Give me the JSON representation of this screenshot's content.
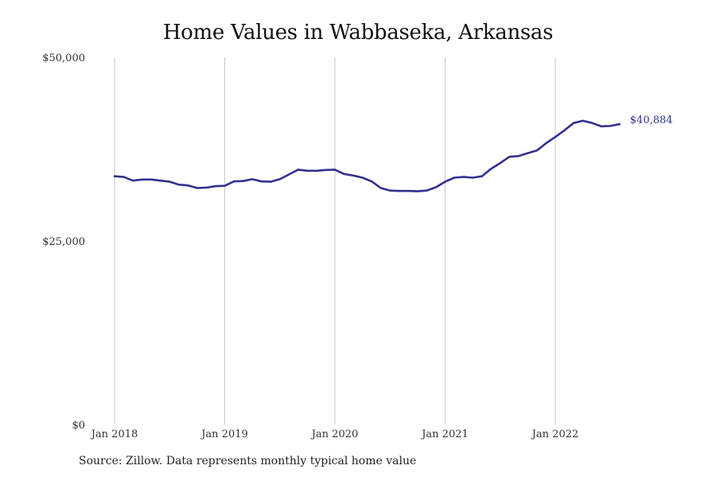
{
  "chart_data": {
    "type": "line",
    "title": "Home Values in Wabbaseka, Arkansas",
    "xlabel": "",
    "ylabel": "",
    "x_ticks": [
      "Jan 2018",
      "Jan 2019",
      "Jan 2020",
      "Jan 2021",
      "Jan 2022"
    ],
    "y_ticks": [
      "$0",
      "$25,000",
      "$50,000"
    ],
    "ylim": [
      0,
      50000
    ],
    "grid": "vertical-at-year-ticks",
    "line_color": "#33308f",
    "end_label": "$40,884",
    "series": [
      {
        "x": [
          "2018-01",
          "2018-02",
          "2018-03",
          "2018-04",
          "2018-05",
          "2018-06",
          "2018-07",
          "2018-08",
          "2018-09",
          "2018-10",
          "2018-11",
          "2018-12",
          "2019-01",
          "2019-02",
          "2019-03",
          "2019-04",
          "2019-05",
          "2019-06",
          "2019-07",
          "2019-08",
          "2019-09",
          "2019-10",
          "2019-11",
          "2019-12",
          "2020-01",
          "2020-02",
          "2020-03",
          "2020-04",
          "2020-05",
          "2020-06",
          "2020-07",
          "2020-08",
          "2020-09",
          "2020-10",
          "2020-11",
          "2020-12",
          "2021-01",
          "2021-02",
          "2021-03",
          "2021-04",
          "2021-05",
          "2021-06",
          "2021-07",
          "2021-08",
          "2021-09",
          "2021-10",
          "2021-11",
          "2021-12",
          "2022-01",
          "2022-02",
          "2022-03",
          "2022-04",
          "2022-05",
          "2022-06",
          "2022-07",
          "2022-08"
        ],
        "values": [
          33800,
          33700,
          33200,
          33350,
          33350,
          33200,
          33050,
          32650,
          32550,
          32200,
          32250,
          32450,
          32500,
          33100,
          33150,
          33400,
          33100,
          33050,
          33400,
          34050,
          34700,
          34550,
          34550,
          34650,
          34700,
          34100,
          33900,
          33600,
          33100,
          32200,
          31850,
          31800,
          31800,
          31750,
          31850,
          32300,
          33050,
          33600,
          33700,
          33600,
          33800,
          34800,
          35600,
          36450,
          36550,
          36950,
          37300,
          38300,
          39150,
          40050,
          41050,
          41350,
          41050,
          40600,
          40650,
          40884
        ]
      }
    ]
  },
  "footer": {
    "source": "Source: Zillow. Data represents monthly typical home value"
  }
}
